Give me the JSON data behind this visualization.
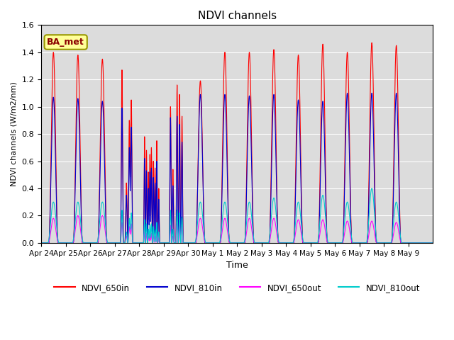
{
  "title": "NDVI channels",
  "xlabel": "Time",
  "ylabel": "NDVI channels (W/m2/nm)",
  "annotation": "BA_met",
  "ylim": [
    0,
    1.6
  ],
  "colors": {
    "NDVI_650in": "#FF0000",
    "NDVI_810in": "#0000CD",
    "NDVI_650out": "#FF00FF",
    "NDVI_810out": "#00CCCC"
  },
  "legend_labels": [
    "NDVI_650in",
    "NDVI_810in",
    "NDVI_650out",
    "NDVI_810out"
  ],
  "xtick_labels": [
    "Apr 24",
    "Apr 25",
    "Apr 26",
    "Apr 27",
    "Apr 28",
    "Apr 29",
    "Apr 30",
    "May 1",
    "May 2",
    "May 3",
    "May 4",
    "May 5",
    "May 6",
    "May 7",
    "May 8",
    "May 9"
  ],
  "background_color": "#DCDCDC",
  "figsize": [
    6.4,
    4.8
  ],
  "dpi": 100
}
